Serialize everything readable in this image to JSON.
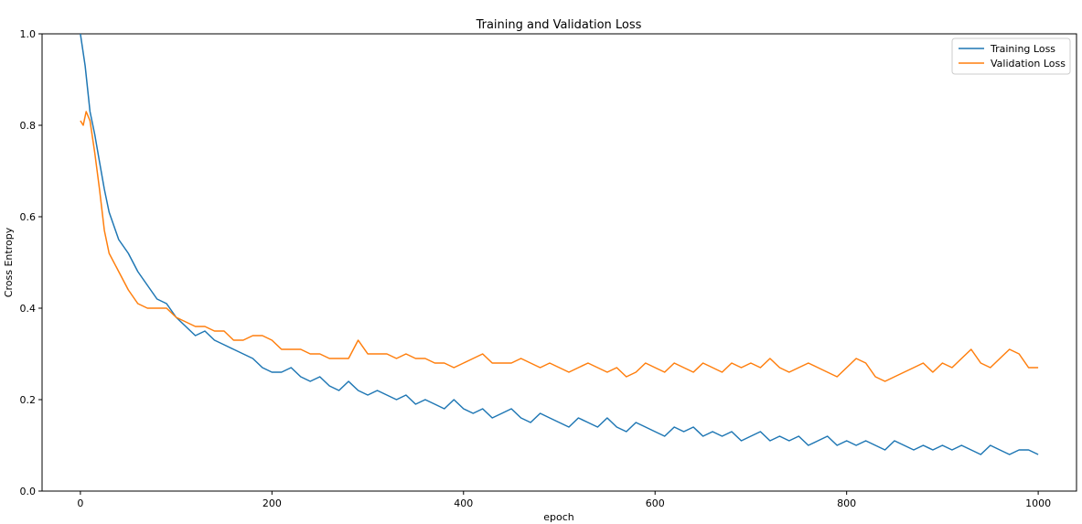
{
  "chart_data": {
    "type": "line",
    "title": "Training and Validation Loss",
    "xlabel": "epoch",
    "ylabel": "Cross Entropy",
    "xlim": [
      -40,
      1040
    ],
    "ylim": [
      0.0,
      1.0
    ],
    "xticks": [
      0,
      200,
      400,
      600,
      800,
      1000
    ],
    "xtick_labels": [
      "0",
      "200",
      "400",
      "600",
      "800",
      "1000"
    ],
    "yticks": [
      0.0,
      0.2,
      0.4,
      0.6,
      0.8,
      1.0
    ],
    "ytick_labels": [
      "0.0",
      "0.2",
      "0.4",
      "0.6",
      "0.8",
      "1.0"
    ],
    "grid": false,
    "legend_position": "top-right",
    "series": [
      {
        "name": "Training Loss",
        "color": "#1f77b4",
        "x": [
          0,
          5,
          10,
          15,
          20,
          25,
          30,
          40,
          50,
          60,
          70,
          80,
          90,
          100,
          110,
          120,
          130,
          140,
          150,
          160,
          170,
          180,
          190,
          200,
          210,
          220,
          230,
          240,
          250,
          260,
          270,
          280,
          290,
          300,
          310,
          320,
          330,
          340,
          350,
          360,
          370,
          380,
          390,
          400,
          410,
          420,
          430,
          440,
          450,
          460,
          470,
          480,
          490,
          500,
          510,
          520,
          530,
          540,
          550,
          560,
          570,
          580,
          590,
          600,
          610,
          620,
          630,
          640,
          650,
          660,
          670,
          680,
          690,
          700,
          710,
          720,
          730,
          740,
          750,
          760,
          770,
          780,
          790,
          800,
          810,
          820,
          830,
          840,
          850,
          860,
          870,
          880,
          890,
          900,
          910,
          920,
          930,
          940,
          950,
          960,
          970,
          980,
          990,
          1000
        ],
        "values": [
          1.0,
          0.93,
          0.83,
          0.78,
          0.72,
          0.66,
          0.61,
          0.55,
          0.52,
          0.48,
          0.45,
          0.42,
          0.41,
          0.38,
          0.36,
          0.34,
          0.35,
          0.33,
          0.32,
          0.31,
          0.3,
          0.29,
          0.27,
          0.26,
          0.26,
          0.27,
          0.25,
          0.24,
          0.25,
          0.23,
          0.22,
          0.24,
          0.22,
          0.21,
          0.22,
          0.21,
          0.2,
          0.21,
          0.19,
          0.2,
          0.19,
          0.18,
          0.2,
          0.18,
          0.17,
          0.18,
          0.16,
          0.17,
          0.18,
          0.16,
          0.15,
          0.17,
          0.16,
          0.15,
          0.14,
          0.16,
          0.15,
          0.14,
          0.16,
          0.14,
          0.13,
          0.15,
          0.14,
          0.13,
          0.12,
          0.14,
          0.13,
          0.14,
          0.12,
          0.13,
          0.12,
          0.13,
          0.11,
          0.12,
          0.13,
          0.11,
          0.12,
          0.11,
          0.12,
          0.1,
          0.11,
          0.12,
          0.1,
          0.11,
          0.1,
          0.11,
          0.1,
          0.09,
          0.11,
          0.1,
          0.09,
          0.1,
          0.09,
          0.1,
          0.09,
          0.1,
          0.09,
          0.08,
          0.1,
          0.09,
          0.08,
          0.09,
          0.09,
          0.08
        ]
      },
      {
        "name": "Validation Loss",
        "color": "#ff7f0e",
        "x": [
          0,
          3,
          6,
          10,
          15,
          20,
          25,
          30,
          40,
          50,
          60,
          70,
          80,
          90,
          100,
          110,
          120,
          130,
          140,
          150,
          160,
          170,
          180,
          190,
          200,
          210,
          220,
          230,
          240,
          250,
          260,
          270,
          280,
          290,
          300,
          310,
          320,
          330,
          340,
          350,
          360,
          370,
          380,
          390,
          400,
          410,
          420,
          430,
          440,
          450,
          460,
          470,
          480,
          490,
          500,
          510,
          520,
          530,
          540,
          550,
          560,
          570,
          580,
          590,
          600,
          610,
          620,
          630,
          640,
          650,
          660,
          670,
          680,
          690,
          700,
          710,
          720,
          730,
          740,
          750,
          760,
          770,
          780,
          790,
          800,
          810,
          820,
          830,
          840,
          850,
          860,
          870,
          880,
          890,
          900,
          910,
          920,
          930,
          940,
          950,
          960,
          970,
          980,
          990,
          1000
        ],
        "values": [
          0.81,
          0.8,
          0.83,
          0.81,
          0.74,
          0.66,
          0.57,
          0.52,
          0.48,
          0.44,
          0.41,
          0.4,
          0.4,
          0.4,
          0.38,
          0.37,
          0.36,
          0.36,
          0.35,
          0.35,
          0.33,
          0.33,
          0.34,
          0.34,
          0.33,
          0.31,
          0.31,
          0.31,
          0.3,
          0.3,
          0.29,
          0.29,
          0.29,
          0.33,
          0.3,
          0.3,
          0.3,
          0.29,
          0.3,
          0.29,
          0.29,
          0.28,
          0.28,
          0.27,
          0.28,
          0.29,
          0.3,
          0.28,
          0.28,
          0.28,
          0.29,
          0.28,
          0.27,
          0.28,
          0.27,
          0.26,
          0.27,
          0.28,
          0.27,
          0.26,
          0.27,
          0.25,
          0.26,
          0.28,
          0.27,
          0.26,
          0.28,
          0.27,
          0.26,
          0.28,
          0.27,
          0.26,
          0.28,
          0.27,
          0.28,
          0.27,
          0.29,
          0.27,
          0.26,
          0.27,
          0.28,
          0.27,
          0.26,
          0.25,
          0.27,
          0.29,
          0.28,
          0.25,
          0.24,
          0.25,
          0.26,
          0.27,
          0.28,
          0.26,
          0.28,
          0.27,
          0.29,
          0.31,
          0.28,
          0.27,
          0.29,
          0.31,
          0.3,
          0.27,
          0.27
        ]
      }
    ]
  }
}
